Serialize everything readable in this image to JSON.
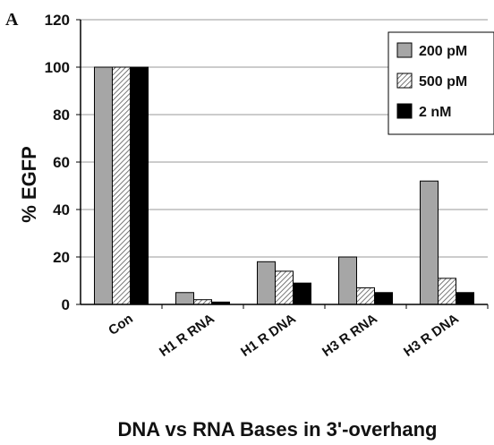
{
  "panel_label": "A",
  "chart_data": {
    "type": "bar",
    "categories": [
      "Con",
      "H1 R RNA",
      "H1 R DNA",
      "H3 R RNA",
      "H3 R DNA"
    ],
    "series": [
      {
        "name": "200 pM",
        "values": [
          100,
          5,
          18,
          20,
          52
        ],
        "color": "#a6a6a6",
        "pattern": "solid"
      },
      {
        "name": "500 pM",
        "values": [
          100,
          2,
          14,
          7,
          11
        ],
        "color": "#ffffff",
        "pattern": "hatched"
      },
      {
        "name": "2 nM",
        "values": [
          100,
          1,
          9,
          5,
          5
        ],
        "color": "#000000",
        "pattern": "solid"
      }
    ],
    "ylabel": "% EGFP",
    "xlabel": "DNA vs RNA Bases in 3'-overhang",
    "ylim": [
      0,
      120
    ],
    "yticks": [
      0,
      20,
      40,
      60,
      80,
      100,
      120
    ],
    "grid": true,
    "legend_position": "top-right"
  }
}
